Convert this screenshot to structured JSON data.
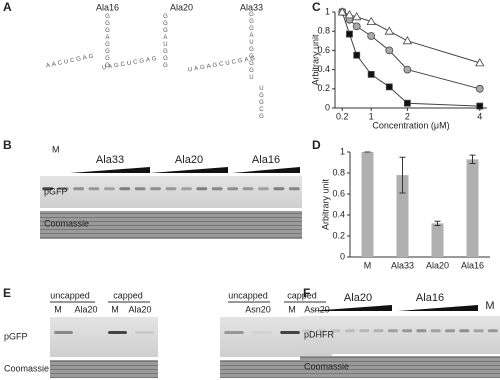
{
  "panel_labels": [
    "A",
    "B",
    "C",
    "D",
    "E",
    "F"
  ],
  "panel_a": {
    "structures": [
      {
        "name": "Ala16",
        "segments": [
          "AACUCGAG",
          "GGGAGGGG"
        ]
      },
      {
        "name": "Ala20",
        "segments": [
          "UAGCUCGAG",
          "GGGAUGGG"
        ]
      },
      {
        "name": "Ala33",
        "segments": [
          "UAGAGCUCGAG",
          "GGGAUGGGGU",
          "UGGCG"
        ]
      }
    ]
  },
  "panel_b": {
    "lane_marker": "M",
    "groups": [
      "Ala33",
      "Ala20",
      "Ala16"
    ],
    "rows": [
      "pGFP",
      "Coomassie"
    ]
  },
  "chart_data": [
    {
      "type": "line",
      "xlabel": "Concentration (μM)",
      "ylabel": "Arbitrary unit",
      "x": [
        0.2,
        0.4,
        0.6,
        1,
        1.5,
        2,
        4
      ],
      "series": [
        {
          "color": "#111111",
          "marker": "square",
          "values": [
            1.0,
            0.77,
            0.55,
            0.35,
            0.22,
            0.05,
            0.02
          ]
        },
        {
          "color": "#aaaaaa",
          "marker": "circle",
          "values": [
            1.0,
            0.92,
            0.85,
            0.75,
            0.6,
            0.4,
            0.2
          ]
        },
        {
          "color": "#ffffff",
          "marker": "triangle",
          "values": [
            1.0,
            0.97,
            0.95,
            0.9,
            0.8,
            0.7,
            0.47
          ]
        }
      ],
      "xlim": [
        0,
        4.2
      ],
      "xticks": [
        0.2,
        1,
        2,
        4
      ],
      "ylim": [
        0,
        1
      ],
      "yticks": [
        0,
        0.2,
        0.4,
        0.6,
        0.8,
        1
      ]
    },
    {
      "type": "bar",
      "ylabel": "Arbitrary unit",
      "categories": [
        "M",
        "Ala33",
        "Ala20",
        "Ala16"
      ],
      "values": [
        1.0,
        0.78,
        0.32,
        0.93
      ],
      "errors": [
        0,
        0.17,
        0.02,
        0.04
      ],
      "color": "#b0b0b0",
      "ylim": [
        0,
        1
      ],
      "yticks": [
        0,
        0.2,
        0.4,
        0.6,
        0.8,
        1
      ]
    }
  ],
  "panel_e": {
    "headers": [
      "uncapped",
      "capped",
      "uncapped",
      "capped"
    ],
    "lanes": [
      "M",
      "Ala20",
      "M",
      "Ala20",
      "Asn20",
      "M",
      "Asn20"
    ],
    "rows": [
      "pGFP",
      "Coomassie"
    ]
  },
  "panel_f": {
    "groups": [
      "Ala20",
      "Ala16"
    ],
    "lane_marker": "M",
    "rows": [
      "pDHFR",
      "Coomassie"
    ]
  }
}
